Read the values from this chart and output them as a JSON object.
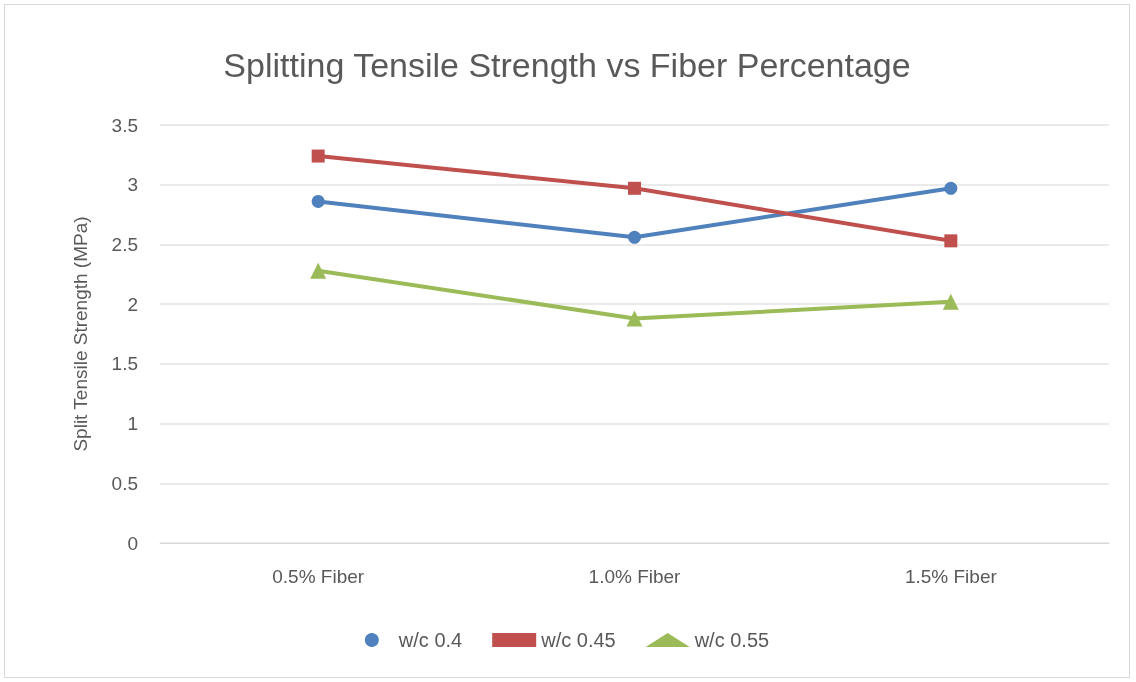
{
  "chart_data": {
    "type": "line",
    "title": "Splitting Tensile Strength vs Fiber Percentage",
    "ylabel": "Split Tensile Strength (MPa)",
    "categories": [
      "0.5% Fiber",
      "1.0% Fiber",
      "1.5% Fiber"
    ],
    "series": [
      {
        "name": "w/c 0.4",
        "color": "#4f81bd",
        "marker": "circle",
        "values": [
          2.86,
          2.56,
          2.97
        ]
      },
      {
        "name": "w/c 0.45",
        "color": "#c0504d",
        "marker": "square",
        "values": [
          3.24,
          2.97,
          2.53
        ]
      },
      {
        "name": "w/c 0.55",
        "color": "#9bbb59",
        "marker": "triangle",
        "values": [
          2.28,
          1.88,
          2.02
        ]
      }
    ],
    "ylim": [
      0,
      3.5
    ],
    "yticks": [
      0,
      0.5,
      1,
      1.5,
      2,
      2.5,
      3,
      3.5
    ],
    "grid": "y",
    "legend": "bottom",
    "line_style": "solid"
  }
}
